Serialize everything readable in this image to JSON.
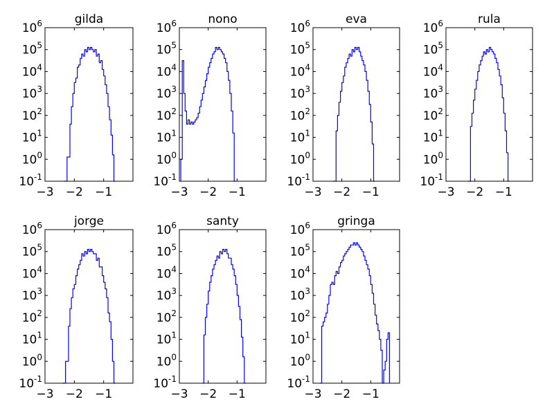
{
  "figure": {
    "background": "#ffffff",
    "line_color": "#0000ff"
  },
  "chart_data": [
    {
      "type": "line",
      "style": "step-histogram",
      "title": "gilda",
      "xlabel": "",
      "ylabel": "",
      "xlim": [
        -3,
        0
      ],
      "ylim_exp": [
        -1,
        6
      ],
      "yscale": "log",
      "xticks": [
        "−3",
        "−2",
        "−1"
      ],
      "yticks": [
        "10-1",
        "100",
        "101",
        "102",
        "103",
        "104",
        "105",
        "106"
      ],
      "bins": [
        [
          -2.35,
          -1.0
        ],
        [
          -2.25,
          0.1
        ],
        [
          -2.15,
          1.6
        ],
        [
          -2.1,
          2.4
        ],
        [
          -2.05,
          3.0
        ],
        [
          -2.0,
          3.5
        ],
        [
          -1.95,
          3.7
        ],
        [
          -1.9,
          4.2
        ],
        [
          -1.85,
          4.3
        ],
        [
          -1.8,
          4.6
        ],
        [
          -1.75,
          4.8
        ],
        [
          -1.7,
          4.7
        ],
        [
          -1.65,
          5.0
        ],
        [
          -1.6,
          4.9
        ],
        [
          -1.55,
          5.1
        ],
        [
          -1.5,
          5.0
        ],
        [
          -1.45,
          5.1
        ],
        [
          -1.4,
          5.0
        ],
        [
          -1.35,
          4.9
        ],
        [
          -1.3,
          5.0
        ],
        [
          -1.25,
          4.7
        ],
        [
          -1.2,
          4.8
        ],
        [
          -1.15,
          4.4
        ],
        [
          -1.1,
          4.5
        ],
        [
          -1.05,
          4.1
        ],
        [
          -1.0,
          3.8
        ],
        [
          -0.95,
          3.4
        ],
        [
          -0.9,
          3.0
        ],
        [
          -0.85,
          2.4
        ],
        [
          -0.8,
          1.8
        ],
        [
          -0.75,
          1.1
        ],
        [
          -0.7,
          0.2
        ],
        [
          -0.65,
          -1.0
        ]
      ]
    },
    {
      "type": "line",
      "style": "step-histogram",
      "title": "nono",
      "xlabel": "",
      "ylabel": "",
      "xlim": [
        -3,
        0
      ],
      "ylim_exp": [
        -1,
        6
      ],
      "yscale": "log",
      "xticks": [
        "−3",
        "−2",
        "−1"
      ],
      "yticks": [
        "10-1",
        "100",
        "101",
        "102",
        "103",
        "104",
        "105",
        "106"
      ],
      "bins": [
        [
          -2.95,
          0.0
        ],
        [
          -2.9,
          4.5
        ],
        [
          -2.85,
          3.0
        ],
        [
          -2.8,
          2.2
        ],
        [
          -2.75,
          1.6
        ],
        [
          -2.7,
          1.8
        ],
        [
          -2.65,
          1.6
        ],
        [
          -2.6,
          1.7
        ],
        [
          -2.55,
          1.6
        ],
        [
          -2.5,
          1.7
        ],
        [
          -2.45,
          1.8
        ],
        [
          -2.4,
          1.9
        ],
        [
          -2.35,
          2.1
        ],
        [
          -2.3,
          2.4
        ],
        [
          -2.25,
          2.7
        ],
        [
          -2.2,
          3.0
        ],
        [
          -2.15,
          3.3
        ],
        [
          -2.1,
          3.6
        ],
        [
          -2.05,
          3.9
        ],
        [
          -2.0,
          4.2
        ],
        [
          -1.95,
          4.4
        ],
        [
          -1.9,
          4.6
        ],
        [
          -1.85,
          4.8
        ],
        [
          -1.8,
          4.9
        ],
        [
          -1.75,
          5.1
        ],
        [
          -1.7,
          5.0
        ],
        [
          -1.65,
          5.1
        ],
        [
          -1.6,
          5.0
        ],
        [
          -1.55,
          4.9
        ],
        [
          -1.5,
          4.8
        ],
        [
          -1.45,
          4.6
        ],
        [
          -1.4,
          4.4
        ],
        [
          -1.35,
          4.0
        ],
        [
          -1.3,
          3.6
        ],
        [
          -1.25,
          3.0
        ],
        [
          -1.2,
          2.2
        ],
        [
          -1.15,
          1.2
        ],
        [
          -1.1,
          -1.0
        ]
      ]
    },
    {
      "type": "line",
      "style": "step-histogram",
      "title": "eva",
      "xlabel": "",
      "ylabel": "",
      "xlim": [
        -3,
        0
      ],
      "ylim_exp": [
        -1,
        6
      ],
      "yscale": "log",
      "xticks": [
        "−3",
        "−2",
        "−1"
      ],
      "yticks": [
        "10-1",
        "100",
        "101",
        "102",
        "103",
        "104",
        "105",
        "106"
      ],
      "bins": [
        [
          -2.3,
          -1.0
        ],
        [
          -2.2,
          1.3
        ],
        [
          -2.15,
          2.0
        ],
        [
          -2.1,
          2.6
        ],
        [
          -2.05,
          3.1
        ],
        [
          -2.0,
          3.5
        ],
        [
          -1.95,
          3.8
        ],
        [
          -1.9,
          4.2
        ],
        [
          -1.85,
          4.4
        ],
        [
          -1.8,
          4.6
        ],
        [
          -1.75,
          4.8
        ],
        [
          -1.7,
          4.7
        ],
        [
          -1.65,
          5.0
        ],
        [
          -1.6,
          4.9
        ],
        [
          -1.55,
          5.1
        ],
        [
          -1.5,
          5.0
        ],
        [
          -1.45,
          5.1
        ],
        [
          -1.4,
          4.9
        ],
        [
          -1.35,
          4.7
        ],
        [
          -1.3,
          4.5
        ],
        [
          -1.25,
          4.3
        ],
        [
          -1.2,
          4.0
        ],
        [
          -1.15,
          3.6
        ],
        [
          -1.1,
          3.1
        ],
        [
          -1.05,
          2.5
        ],
        [
          -1.0,
          1.7
        ],
        [
          -0.95,
          0.7
        ],
        [
          -0.9,
          -1.0
        ]
      ]
    },
    {
      "type": "line",
      "style": "step-histogram",
      "title": "rula",
      "xlabel": "",
      "ylabel": "",
      "xlim": [
        -3,
        0
      ],
      "ylim_exp": [
        -1,
        6
      ],
      "yscale": "log",
      "xticks": [
        "−3",
        "−2",
        "−1"
      ],
      "yticks": [
        "10-1",
        "100",
        "101",
        "102",
        "103",
        "104",
        "105",
        "106"
      ],
      "bins": [
        [
          -2.25,
          -1.0
        ],
        [
          -2.15,
          1.5
        ],
        [
          -2.1,
          2.1
        ],
        [
          -2.05,
          2.7
        ],
        [
          -2.0,
          3.2
        ],
        [
          -1.95,
          3.6
        ],
        [
          -1.9,
          4.0
        ],
        [
          -1.85,
          4.3
        ],
        [
          -1.8,
          4.5
        ],
        [
          -1.75,
          4.7
        ],
        [
          -1.7,
          4.9
        ],
        [
          -1.65,
          4.8
        ],
        [
          -1.6,
          5.0
        ],
        [
          -1.55,
          4.9
        ],
        [
          -1.5,
          5.1
        ],
        [
          -1.45,
          5.0
        ],
        [
          -1.4,
          4.9
        ],
        [
          -1.35,
          4.8
        ],
        [
          -1.3,
          4.6
        ],
        [
          -1.25,
          4.4
        ],
        [
          -1.2,
          4.1
        ],
        [
          -1.15,
          3.8
        ],
        [
          -1.1,
          3.4
        ],
        [
          -1.05,
          2.8
        ],
        [
          -1.0,
          2.1
        ],
        [
          -0.95,
          1.3
        ],
        [
          -0.9,
          0.3
        ],
        [
          -0.85,
          -1.0
        ]
      ]
    },
    {
      "type": "line",
      "style": "step-histogram",
      "title": "jorge",
      "xlabel": "",
      "ylabel": "",
      "xlim": [
        -3,
        0
      ],
      "ylim_exp": [
        -1,
        6
      ],
      "yscale": "log",
      "xticks": [
        "−3",
        "−2",
        "−1"
      ],
      "yticks": [
        "10-1",
        "100",
        "101",
        "102",
        "103",
        "104",
        "105",
        "106"
      ],
      "bins": [
        [
          -2.4,
          -1.0
        ],
        [
          -2.3,
          0.0
        ],
        [
          -2.2,
          1.6
        ],
        [
          -2.15,
          2.4
        ],
        [
          -2.1,
          2.9
        ],
        [
          -2.05,
          3.3
        ],
        [
          -2.0,
          3.5
        ],
        [
          -1.95,
          3.9
        ],
        [
          -1.9,
          4.2
        ],
        [
          -1.85,
          4.4
        ],
        [
          -1.8,
          4.6
        ],
        [
          -1.75,
          4.9
        ],
        [
          -1.7,
          4.8
        ],
        [
          -1.65,
          5.0
        ],
        [
          -1.6,
          4.9
        ],
        [
          -1.55,
          5.1
        ],
        [
          -1.5,
          5.0
        ],
        [
          -1.45,
          5.1
        ],
        [
          -1.4,
          5.0
        ],
        [
          -1.35,
          4.9
        ],
        [
          -1.3,
          4.9
        ],
        [
          -1.25,
          4.6
        ],
        [
          -1.2,
          4.7
        ],
        [
          -1.15,
          4.3
        ],
        [
          -1.1,
          4.3
        ],
        [
          -1.05,
          3.9
        ],
        [
          -1.0,
          3.6
        ],
        [
          -0.95,
          3.3
        ],
        [
          -0.9,
          2.9
        ],
        [
          -0.85,
          2.2
        ],
        [
          -0.8,
          1.8
        ],
        [
          -0.75,
          1.0
        ],
        [
          -0.7,
          0.0
        ],
        [
          -0.65,
          -1.0
        ]
      ]
    },
    {
      "type": "line",
      "style": "step-histogram",
      "title": "santy",
      "xlabel": "",
      "ylabel": "",
      "xlim": [
        -3,
        0
      ],
      "ylim_exp": [
        -1,
        6
      ],
      "yscale": "log",
      "xticks": [
        "−3",
        "−2",
        "−1"
      ],
      "yticks": [
        "10-1",
        "100",
        "101",
        "102",
        "103",
        "104",
        "105",
        "106"
      ],
      "bins": [
        [
          -2.2,
          -1.0
        ],
        [
          -2.15,
          1.2
        ],
        [
          -2.1,
          2.0
        ],
        [
          -2.05,
          2.6
        ],
        [
          -2.0,
          3.2
        ],
        [
          -1.95,
          3.6
        ],
        [
          -1.9,
          3.9
        ],
        [
          -1.85,
          4.2
        ],
        [
          -1.8,
          4.4
        ],
        [
          -1.75,
          4.6
        ],
        [
          -1.7,
          4.8
        ],
        [
          -1.65,
          4.7
        ],
        [
          -1.6,
          5.0
        ],
        [
          -1.55,
          4.9
        ],
        [
          -1.5,
          5.1
        ],
        [
          -1.45,
          5.0
        ],
        [
          -1.4,
          5.1
        ],
        [
          -1.35,
          4.9
        ],
        [
          -1.3,
          4.7
        ],
        [
          -1.25,
          4.7
        ],
        [
          -1.2,
          4.4
        ],
        [
          -1.15,
          4.2
        ],
        [
          -1.1,
          3.9
        ],
        [
          -1.05,
          3.5
        ],
        [
          -1.0,
          3.0
        ],
        [
          -0.95,
          2.5
        ],
        [
          -0.9,
          1.9
        ],
        [
          -0.85,
          1.1
        ],
        [
          -0.8,
          0.2
        ],
        [
          -0.75,
          -1.0
        ]
      ]
    },
    {
      "type": "line",
      "style": "step-histogram",
      "title": "gringa",
      "xlabel": "",
      "ylabel": "",
      "xlim": [
        -3,
        0
      ],
      "ylim_exp": [
        -1,
        6
      ],
      "yscale": "log",
      "xticks": [
        "−3",
        "−2",
        "−1"
      ],
      "yticks": [
        "10-1",
        "100",
        "101",
        "102",
        "103",
        "104",
        "105",
        "106"
      ],
      "bins": [
        [
          -2.75,
          -1.0
        ],
        [
          -2.7,
          1.6
        ],
        [
          -2.65,
          1.8
        ],
        [
          -2.6,
          2.0
        ],
        [
          -2.55,
          2.2
        ],
        [
          -2.5,
          2.6
        ],
        [
          -2.45,
          3.0
        ],
        [
          -2.4,
          3.5
        ],
        [
          -2.35,
          3.6
        ],
        [
          -2.3,
          3.5
        ],
        [
          -2.25,
          3.9
        ],
        [
          -2.2,
          4.1
        ],
        [
          -2.15,
          4.0
        ],
        [
          -2.1,
          4.3
        ],
        [
          -2.05,
          4.5
        ],
        [
          -2.0,
          4.6
        ],
        [
          -1.95,
          4.8
        ],
        [
          -1.9,
          4.9
        ],
        [
          -1.85,
          5.0
        ],
        [
          -1.8,
          5.1
        ],
        [
          -1.75,
          5.2
        ],
        [
          -1.7,
          5.3
        ],
        [
          -1.65,
          5.3
        ],
        [
          -1.6,
          5.4
        ],
        [
          -1.55,
          5.3
        ],
        [
          -1.5,
          5.4
        ],
        [
          -1.45,
          5.3
        ],
        [
          -1.4,
          5.2
        ],
        [
          -1.35,
          5.1
        ],
        [
          -1.3,
          5.0
        ],
        [
          -1.25,
          4.8
        ],
        [
          -1.2,
          4.6
        ],
        [
          -1.15,
          4.4
        ],
        [
          -1.1,
          4.2
        ],
        [
          -1.05,
          3.9
        ],
        [
          -1.0,
          3.5
        ],
        [
          -0.95,
          3.1
        ],
        [
          -0.9,
          2.6
        ],
        [
          -0.85,
          2.1
        ],
        [
          -0.8,
          1.7
        ],
        [
          -0.75,
          1.4
        ],
        [
          -0.7,
          1.0
        ],
        [
          -0.65,
          0.5
        ],
        [
          -0.6,
          -1.0
        ],
        [
          -0.55,
          -0.4
        ],
        [
          -0.5,
          0.0
        ],
        [
          -0.45,
          1.0
        ],
        [
          -0.4,
          1.3
        ]
      ]
    }
  ]
}
